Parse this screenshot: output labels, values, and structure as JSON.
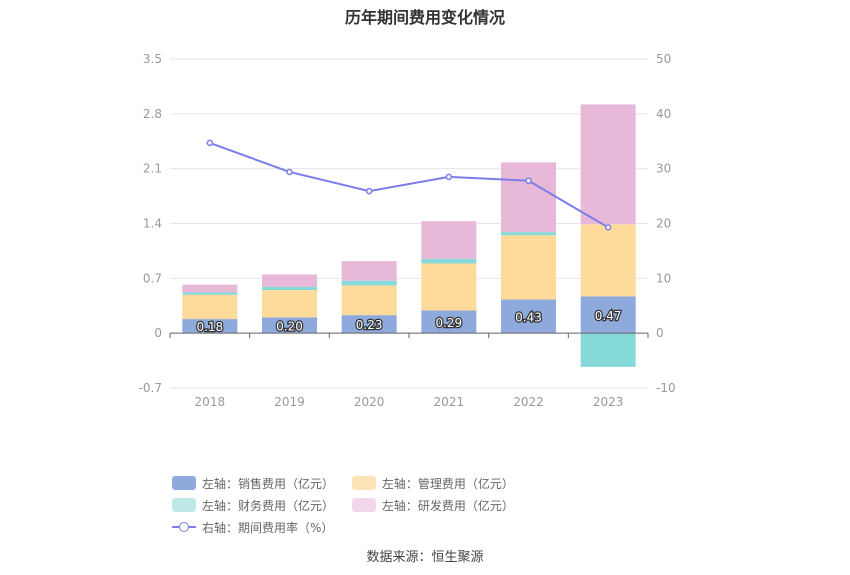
{
  "chart_data": {
    "type": "bar",
    "title": "历年期间费用变化情况",
    "categories": [
      "2018",
      "2019",
      "2020",
      "2021",
      "2022",
      "2023"
    ],
    "y_left": {
      "ylim": [
        -0.7,
        3.5
      ],
      "ticks": [
        "3.5",
        "2.8",
        "2.1",
        "1.4",
        "0.7",
        "0",
        "-0.7"
      ]
    },
    "y_right": {
      "ylim": [
        -10,
        50
      ],
      "ticks": [
        "50",
        "40",
        "30",
        "20",
        "10",
        "0",
        "-10"
      ]
    },
    "series": [
      {
        "name": "左轴：销售费用（亿元）",
        "color": "#8eaadc",
        "values": [
          0.18,
          0.2,
          0.23,
          0.29,
          0.43,
          0.47
        ],
        "labels": [
          "0.18",
          "0.20",
          "0.23",
          "0.29",
          "0.43",
          "0.47"
        ]
      },
      {
        "name": "左轴：管理费用（亿元）",
        "color": "#ffdb9b",
        "values": [
          0.31,
          0.35,
          0.38,
          0.6,
          0.82,
          0.92
        ]
      },
      {
        "name": "左轴：财务费用（亿元）",
        "color": "#86d9d9",
        "values": [
          0.03,
          0.04,
          0.06,
          0.06,
          0.04,
          -0.43
        ]
      },
      {
        "name": "左轴：研发费用（亿元）",
        "color": "#e8b8d9",
        "values": [
          0.1,
          0.16,
          0.25,
          0.48,
          0.89,
          1.53
        ]
      },
      {
        "name": "右轴：期间费用率（%）",
        "color": "#7b7ee8",
        "axis": "right",
        "type": "line",
        "values": [
          34.7,
          29.4,
          25.9,
          28.5,
          27.8,
          19.3
        ]
      }
    ],
    "legend_position": "bottom",
    "grid": true
  },
  "legend": [
    {
      "label": "左轴：销售费用（亿元）",
      "color": "#8eaadc",
      "kind": "bar"
    },
    {
      "label": "左轴：管理费用（亿元）",
      "color": "#fde3b8",
      "kind": "bar"
    },
    {
      "label": "左轴：财务费用（亿元）",
      "color": "#bfe9e9",
      "kind": "bar"
    },
    {
      "label": "左轴：研发费用（亿元）",
      "color": "#f2d6ea",
      "kind": "bar"
    },
    {
      "label": "右轴：期间费用率（%）",
      "color": "#7b7ee8",
      "kind": "line"
    }
  ],
  "source": "数据来源：恒生聚源"
}
